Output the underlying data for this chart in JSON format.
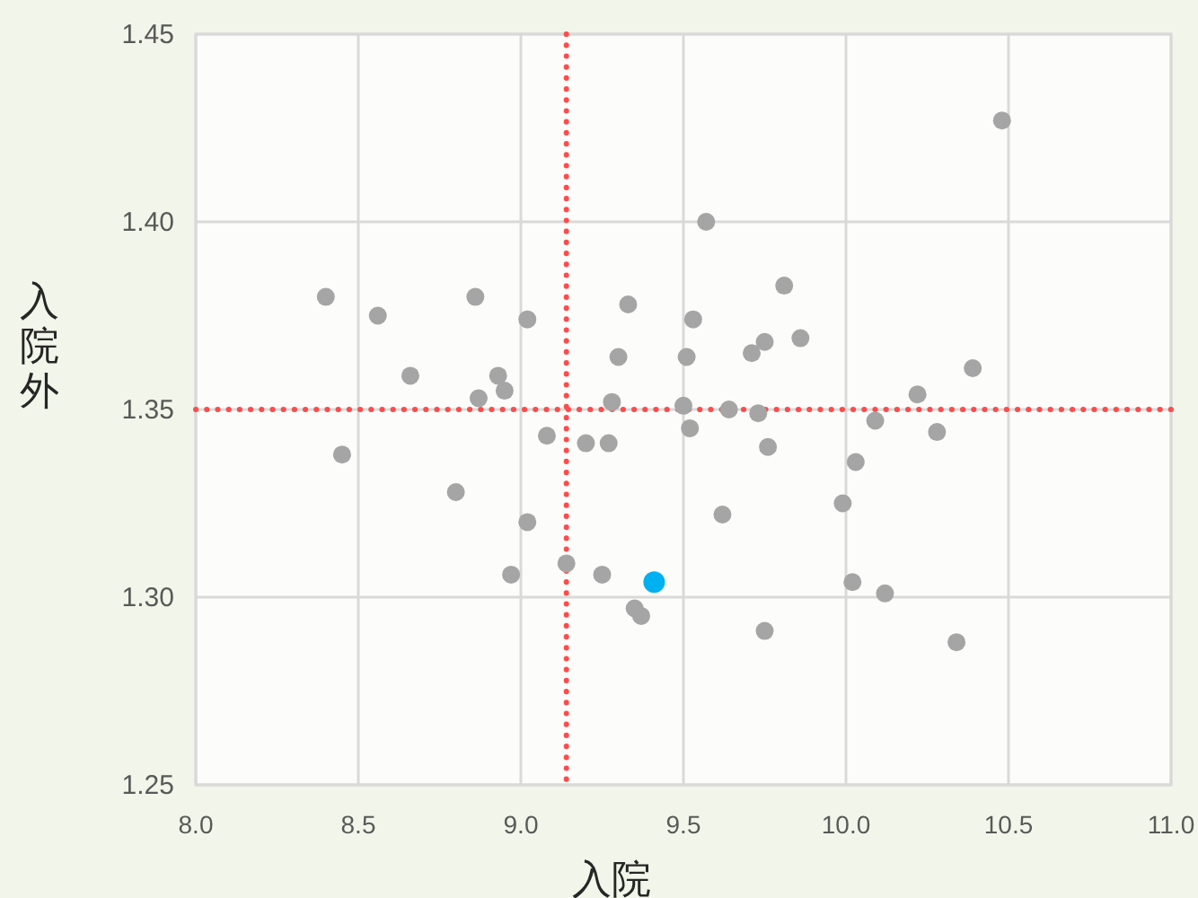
{
  "chart_data": {
    "type": "scatter",
    "xlabel": "入院",
    "ylabel": "入院外",
    "xlim": [
      8.0,
      11.0
    ],
    "ylim": [
      1.25,
      1.45
    ],
    "xticks": [
      {
        "value": 8.0,
        "label": "8.0"
      },
      8.5,
      {
        "value": 9.0,
        "label": "9.0"
      },
      9.5,
      {
        "value": 10.0,
        "label": "10.0"
      },
      10.5,
      {
        "value": 11.0,
        "label": "11.0"
      }
    ],
    "yticks": [
      1.25,
      {
        "value": 1.3,
        "label": "1.30"
      },
      1.35,
      {
        "value": 1.4,
        "label": "1.40"
      },
      1.45
    ],
    "grid": true,
    "marker": "circle",
    "series": [
      {
        "color": "#a5a5a5",
        "x": [
          8.4,
          8.56,
          8.66,
          8.86,
          9.02,
          8.93,
          8.95,
          8.87,
          9.08,
          8.45,
          8.8,
          9.02,
          8.97,
          9.14,
          9.25,
          9.33,
          9.3,
          9.28,
          9.2,
          9.27,
          9.35,
          9.37,
          9.57,
          9.53,
          9.51,
          9.5,
          9.52,
          9.81,
          9.71,
          9.75,
          9.86,
          9.64,
          9.73,
          9.76,
          9.62,
          10.48,
          10.39,
          10.22,
          10.09,
          10.28,
          10.03,
          9.99,
          10.02,
          10.12,
          9.75,
          10.34
        ],
        "values": [
          1.38,
          1.375,
          1.359,
          1.38,
          1.374,
          1.359,
          1.355,
          1.353,
          1.343,
          1.338,
          1.328,
          1.32,
          1.306,
          1.309,
          1.306,
          1.378,
          1.364,
          1.352,
          1.341,
          1.341,
          1.297,
          1.295,
          1.4,
          1.374,
          1.364,
          1.351,
          1.345,
          1.383,
          1.365,
          1.368,
          1.369,
          1.35,
          1.349,
          1.34,
          1.322,
          1.427,
          1.361,
          1.354,
          1.347,
          1.344,
          1.336,
          1.325,
          1.304,
          1.301,
          1.291,
          1.288
        ]
      },
      {
        "color": "#00b0f0",
        "x": [
          9.41
        ],
        "values": [
          1.304
        ]
      }
    ],
    "ref_lines": [
      {
        "axis": "x",
        "value": 9.14,
        "color": "#ff4b4b",
        "line_style": "dotted"
      },
      {
        "axis": "y",
        "value": 1.35,
        "color": "#ff4b4b",
        "line_style": "dotted"
      }
    ]
  }
}
